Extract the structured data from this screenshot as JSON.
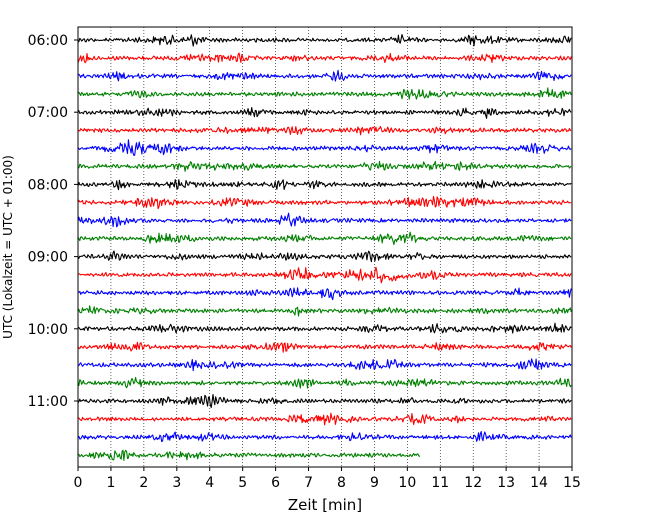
{
  "chart_data": {
    "type": "line",
    "title": "",
    "xlabel": "Zeit  [min]",
    "ylabel": "UTC (Lokalzeit = UTC + 01:00)",
    "xlim": [
      0,
      15
    ],
    "x_ticks": [
      "0",
      "1",
      "2",
      "3",
      "4",
      "5",
      "6",
      "7",
      "8",
      "9",
      "10",
      "11",
      "12",
      "13",
      "14",
      "15"
    ],
    "y_ticks": [
      "06:00",
      "07:00",
      "08:00",
      "09:00",
      "10:00",
      "11:00"
    ],
    "grid": "vertical dotted",
    "trace_interval_minutes": 15,
    "trace_colors": [
      "#000000",
      "#ff0000",
      "#0000ff",
      "#008000"
    ],
    "series": [
      {
        "start": "06:00",
        "end_minute": 15
      },
      {
        "start": "06:15",
        "end_minute": 15
      },
      {
        "start": "06:30",
        "end_minute": 15
      },
      {
        "start": "06:45",
        "end_minute": 15
      },
      {
        "start": "07:00",
        "end_minute": 15
      },
      {
        "start": "07:15",
        "end_minute": 15
      },
      {
        "start": "07:30",
        "end_minute": 15
      },
      {
        "start": "07:45",
        "end_minute": 15
      },
      {
        "start": "08:00",
        "end_minute": 15
      },
      {
        "start": "08:15",
        "end_minute": 15
      },
      {
        "start": "08:30",
        "end_minute": 15
      },
      {
        "start": "08:45",
        "end_minute": 15
      },
      {
        "start": "09:00",
        "end_minute": 15
      },
      {
        "start": "09:15",
        "end_minute": 15,
        "event_minute": 9.0
      },
      {
        "start": "09:30",
        "end_minute": 15
      },
      {
        "start": "09:45",
        "end_minute": 15
      },
      {
        "start": "10:00",
        "end_minute": 15
      },
      {
        "start": "10:15",
        "end_minute": 15
      },
      {
        "start": "10:30",
        "end_minute": 15
      },
      {
        "start": "10:45",
        "end_minute": 15
      },
      {
        "start": "11:00",
        "end_minute": 15
      },
      {
        "start": "11:15",
        "end_minute": 15
      },
      {
        "start": "11:30",
        "end_minute": 15
      },
      {
        "start": "11:45",
        "end_minute": 10.4
      }
    ]
  }
}
